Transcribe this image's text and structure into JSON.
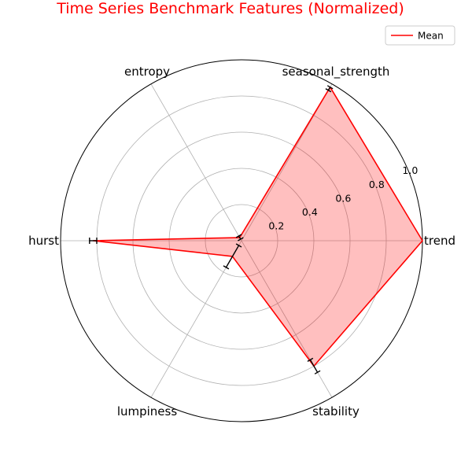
{
  "chart_data": {
    "type": "radar",
    "title": "Time Series Benchmark Features (Normalized)",
    "title_color": "#ff0000",
    "categories": [
      "trend",
      "seasonal_strength",
      "entropy",
      "hurst",
      "lumpiness",
      "stability"
    ],
    "rlim": [
      0,
      1.0
    ],
    "r_ticks": [
      0.2,
      0.4,
      0.6,
      0.8,
      1.0
    ],
    "r_tick_labels": [
      "0.2",
      "0.4",
      "0.6",
      "0.8",
      "1.0"
    ],
    "grid": true,
    "series": [
      {
        "name": "Mean",
        "color": "#ff0000",
        "fill": "#ff0000",
        "values": [
          1.0,
          0.98,
          0.02,
          0.82,
          0.1,
          0.8
        ],
        "error_low": [
          0.0,
          0.02,
          0.01,
          0.02,
          0.07,
          0.04
        ],
        "error_high": [
          0.0,
          0.0,
          0.01,
          0.02,
          0.07,
          0.04
        ]
      }
    ],
    "legend": {
      "position": "top-right",
      "entries": [
        "Mean"
      ]
    }
  }
}
